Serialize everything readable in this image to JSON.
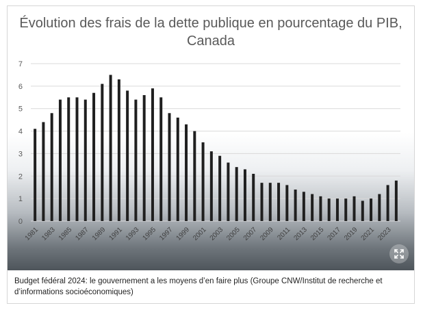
{
  "chart_data": {
    "type": "bar",
    "title": "Évolution des frais de la dette publique en pourcentage du PIB, Canada",
    "xlabel": "",
    "ylabel": "",
    "ylim": [
      0,
      7
    ],
    "yticks": [
      0,
      1,
      2,
      3,
      4,
      5,
      6,
      7
    ],
    "grid": true,
    "legend": "none",
    "bar_color": "#1f1f1f",
    "categories": [
      "1981",
      "1982",
      "1983",
      "1984",
      "1985",
      "1986",
      "1987",
      "1988",
      "1989",
      "1990",
      "1991",
      "1992",
      "1993",
      "1994",
      "1995",
      "1996",
      "1997",
      "1998",
      "1999",
      "2000",
      "2001",
      "2002",
      "2003",
      "2004",
      "2005",
      "2006",
      "2007",
      "2008",
      "2009",
      "2010",
      "2011",
      "2012",
      "2013",
      "2014",
      "2015",
      "2016",
      "2017",
      "2018",
      "2019",
      "2020",
      "2021",
      "2022",
      "2023",
      "2024"
    ],
    "x_tick_labels": [
      "1981",
      "1983",
      "1985",
      "1987",
      "1989",
      "1991",
      "1993",
      "1995",
      "1997",
      "1999",
      "2001",
      "2003",
      "2005",
      "2007",
      "2009",
      "2011",
      "2013",
      "2015",
      "2017",
      "2019",
      "2021",
      "2023"
    ],
    "values": [
      4.1,
      4.4,
      4.8,
      5.4,
      5.5,
      5.5,
      5.4,
      5.7,
      6.1,
      6.5,
      6.3,
      5.8,
      5.4,
      5.6,
      5.9,
      5.5,
      4.8,
      4.6,
      4.3,
      4.0,
      3.5,
      3.1,
      2.9,
      2.6,
      2.4,
      2.3,
      2.1,
      1.7,
      1.7,
      1.7,
      1.6,
      1.4,
      1.3,
      1.2,
      1.1,
      1.0,
      1.0,
      1.0,
      1.1,
      0.9,
      1.0,
      1.2,
      1.6,
      1.8
    ]
  },
  "expand_icon": "expand-arrows-icon",
  "caption": "Budget fédéral 2024: le gouvernement a les moyens d’en faire plus (Groupe CNW/Institut de recherche et d’informations socioéconomiques)"
}
